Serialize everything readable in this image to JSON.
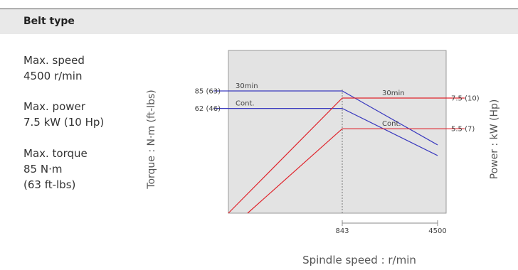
{
  "header": {
    "title": "Belt type"
  },
  "specs": {
    "speed": {
      "label": "Max. speed",
      "value": "4500 r/min"
    },
    "power": {
      "label": "Max. power",
      "value": "7.5 kW (10 Hp)"
    },
    "torque": {
      "label": "Max. torque",
      "value": "85 N·m",
      "value_alt": "(63 ft-lbs)"
    }
  },
  "colors": {
    "torque": "#3b3bbf",
    "power": "#e0242c",
    "plot_bg": "#e3e3e3"
  },
  "chart_data": {
    "type": "line",
    "xlabel": "Spindle speed : r/min",
    "ylabel_left": "Torque : N·m (ft-lbs)",
    "ylabel_right": "Power : kW (Hp)",
    "x_ticks": [
      "843",
      "4500"
    ],
    "torque_tick_labels": [
      "85 (63)",
      "62 (46)"
    ],
    "power_tick_labels": [
      "7.5 (10)",
      "5.5 (7)"
    ],
    "series": [
      {
        "name": "30min",
        "axis": "torque",
        "x": [
          0,
          843,
          4500
        ],
        "y": [
          85,
          85,
          14
        ]
      },
      {
        "name": "Cont.",
        "axis": "torque",
        "x": [
          0,
          843,
          4500
        ],
        "y": [
          62,
          62,
          0
        ]
      },
      {
        "name": "30min",
        "axis": "power",
        "x": [
          0,
          843,
          4500
        ],
        "y": [
          0,
          7.5,
          7.5
        ]
      },
      {
        "name": "Cont.",
        "axis": "power",
        "x": [
          0,
          843,
          4500
        ],
        "y": [
          0,
          5.5,
          5.5
        ]
      }
    ]
  }
}
